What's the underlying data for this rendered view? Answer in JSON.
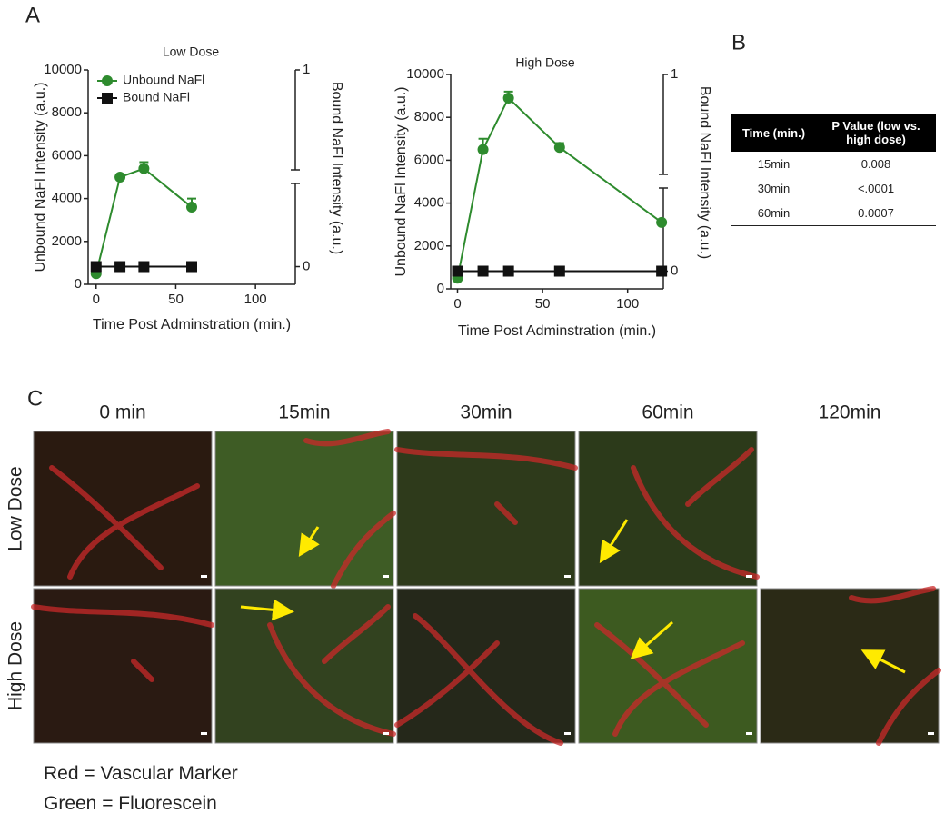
{
  "panel_labels": {
    "a": "A",
    "b": "B",
    "c": "C"
  },
  "chart_data": [
    {
      "type": "line",
      "title": "Low Dose",
      "xlabel": "Time Post Adminstration (min.)",
      "ylabel": "Unbound NaFl Intensity (a.u.)",
      "y2label": "Bound NaFl Intensity (a.u.)",
      "x": [
        0,
        15,
        30,
        60
      ],
      "xlim": [
        -5,
        125
      ],
      "xticks": [
        0,
        50,
        100
      ],
      "ylim": [
        0,
        10000
      ],
      "yticks": [
        0,
        2000,
        4000,
        6000,
        8000,
        10000
      ],
      "y2lim": [
        -0.09,
        1
      ],
      "y2ticks": [
        0,
        1
      ],
      "legend": "upper left",
      "series": [
        {
          "name": "Unbound NaFl",
          "color": "#2e8b2e",
          "marker": "circle",
          "values": [
            500,
            5000,
            5400,
            3600
          ],
          "errors": [
            0,
            0,
            300,
            400
          ]
        },
        {
          "name": "Bound NaFl",
          "color": "#111111",
          "marker": "square",
          "axis": "y2",
          "values": [
            0,
            0,
            0,
            0
          ]
        }
      ]
    },
    {
      "type": "line",
      "title": "High Dose",
      "xlabel": "Time Post Adminstration (min.)",
      "ylabel": "Unbound NaFl Intensity (a.u.)",
      "y2label": "Bound NaFl Intensity (a.u.)",
      "x": [
        0,
        15,
        30,
        60,
        120
      ],
      "xlim": [
        -4,
        121
      ],
      "xticks": [
        0,
        50,
        100
      ],
      "ylim": [
        0,
        10000
      ],
      "yticks": [
        0,
        2000,
        4000,
        6000,
        8000,
        10000
      ],
      "y2lim": [
        -0.09,
        1
      ],
      "y2ticks": [
        0,
        1
      ],
      "series": [
        {
          "color": "#2e8b2e",
          "marker": "circle",
          "values": [
            500,
            6500,
            8900,
            6600,
            3100
          ],
          "errors": [
            0,
            500,
            300,
            200,
            0
          ]
        },
        {
          "color": "#111111",
          "marker": "square",
          "axis": "y2",
          "values": [
            0,
            0,
            0,
            0,
            0
          ]
        }
      ]
    }
  ],
  "table": {
    "header": [
      "Time (min.)",
      "P Value (low vs. high dose)"
    ],
    "rows": [
      [
        "15min",
        "0.008"
      ],
      [
        "30min",
        "<.0001"
      ],
      [
        "60min",
        "0.0007"
      ]
    ]
  },
  "images": {
    "columns": [
      "0 min",
      "15min",
      "30min",
      "60min",
      "120min"
    ],
    "rows": [
      "Low Dose",
      "High Dose"
    ]
  },
  "legend": [
    "Red = Vascular Marker",
    "Green = Fluorescein"
  ]
}
